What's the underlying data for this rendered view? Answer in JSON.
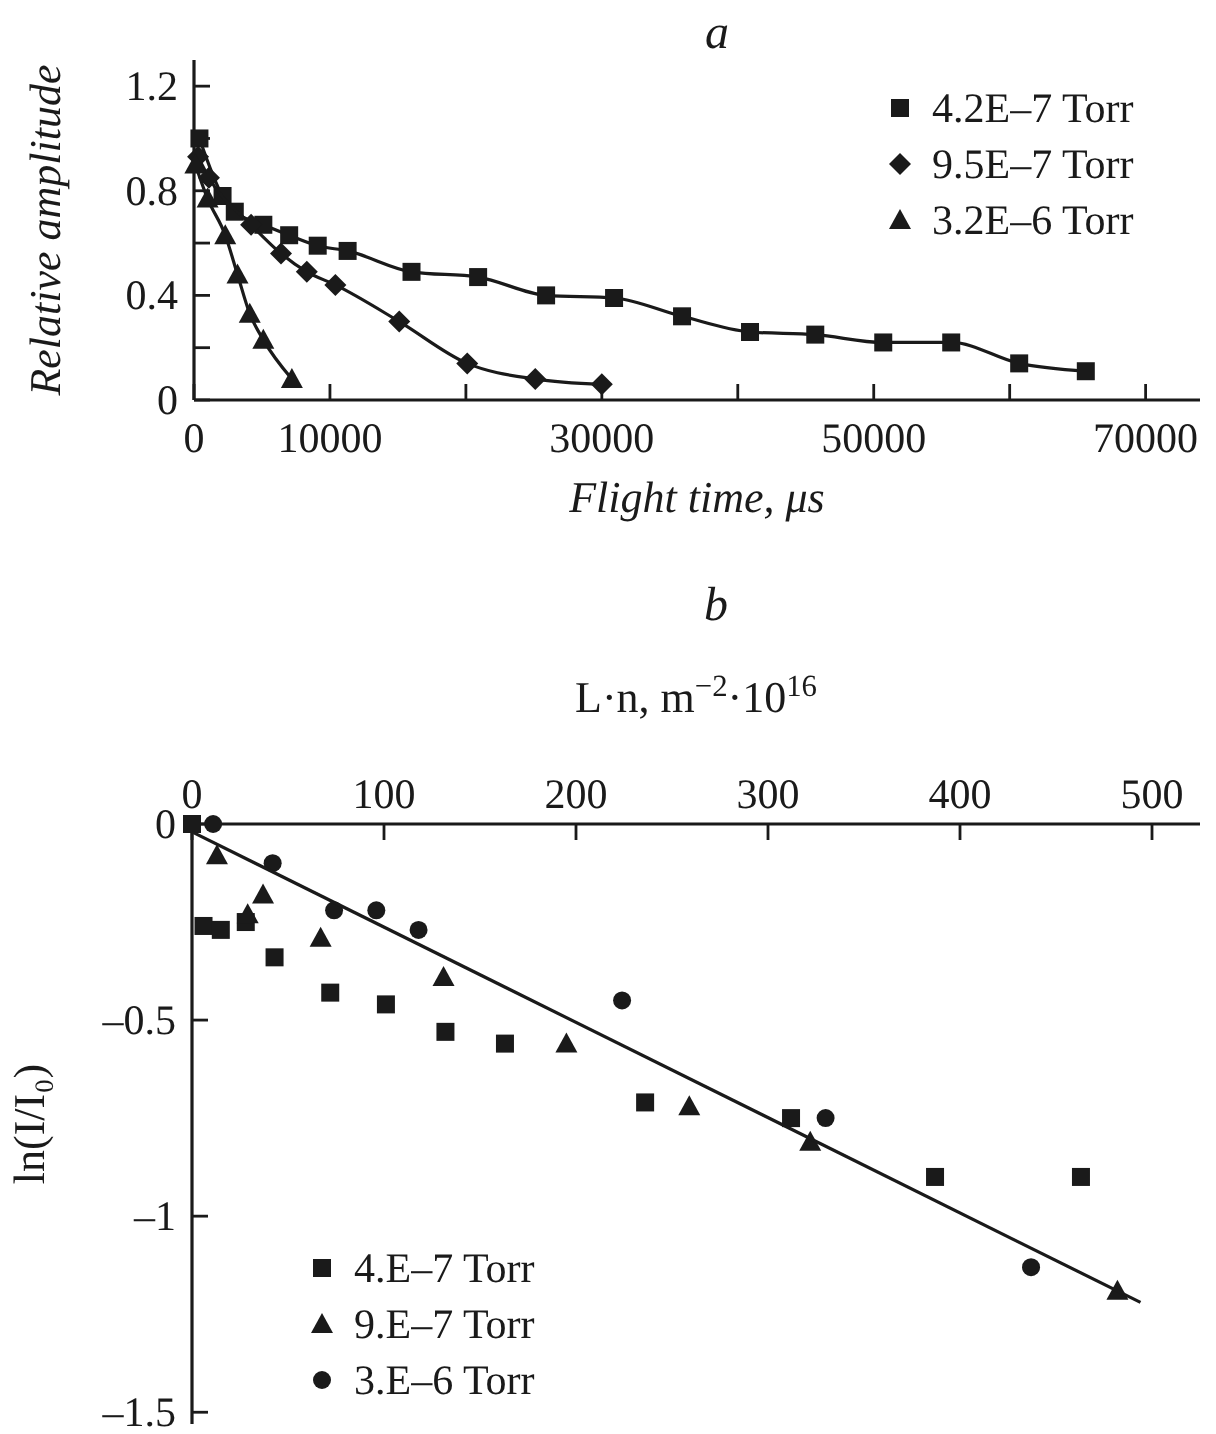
{
  "chart_data": [
    {
      "type": "line",
      "title": "a",
      "xlabel": "Flight time, μs",
      "ylabel": "Relative amplitude",
      "xlim": [
        0,
        74000
      ],
      "ylim": [
        0,
        1.3
      ],
      "xticks": [
        0,
        10000,
        {
          "value": 20000,
          "label": null
        },
        30000,
        {
          "value": 40000,
          "label": null
        },
        50000,
        {
          "value": 60000,
          "label": null
        },
        70000
      ],
      "yticks": [
        0,
        {
          "value": 0.2,
          "label": null
        },
        0.4,
        {
          "value": 0.6,
          "label": null
        },
        0.8,
        {
          "value": 1.0,
          "label": null
        },
        1.2
      ],
      "legend": "top right",
      "grid": false,
      "series": [
        {
          "name": "4.2E–7 Torr",
          "color": "#1a1a1a",
          "marker": "square",
          "x": [
            400,
            2100,
            3000,
            5100,
            7000,
            9100,
            11300,
            16000,
            20900,
            25900,
            30900,
            35900,
            40900,
            45700,
            50700,
            55700,
            60700,
            65600
          ],
          "values": [
            1.0,
            0.78,
            0.72,
            0.67,
            0.63,
            0.59,
            0.57,
            0.49,
            0.47,
            0.4,
            0.39,
            0.32,
            0.26,
            0.25,
            0.22,
            0.22,
            0.14,
            0.11
          ]
        },
        {
          "name": "9.5E–7 Torr",
          "color": "#1a1a1a",
          "marker": "diamond",
          "x": [
            300,
            1100,
            4200,
            6400,
            8300,
            10400,
            15100,
            20100,
            25100,
            30000
          ],
          "values": [
            0.93,
            0.85,
            0.67,
            0.56,
            0.49,
            0.44,
            0.3,
            0.14,
            0.08,
            0.06
          ]
        },
        {
          "name": "3.2E–6 Torr",
          "color": "#1a1a1a",
          "marker": "triangle",
          "x": [
            100,
            1000,
            2300,
            3200,
            4100,
            5100,
            7200
          ],
          "values": [
            0.9,
            0.77,
            0.63,
            0.48,
            0.33,
            0.23,
            0.08
          ]
        }
      ]
    },
    {
      "type": "scatter",
      "title": "b",
      "xlabel": "L·n, m$^{−2}$·10$^{16}$",
      "ylabel": "ln(I/I₀)",
      "xlim": [
        0,
        525
      ],
      "ylim": [
        -1.53,
        0
      ],
      "xticks": [
        0,
        100,
        200,
        300,
        400,
        500
      ],
      "yticks": [
        0,
        {
          "value": -0.5,
          "label": "–0.5"
        },
        {
          "value": -1,
          "label": "–1"
        },
        {
          "value": -1.5,
          "label": "–1.5"
        }
      ],
      "legend": "bottom left",
      "grid": false,
      "series": [
        {
          "name": "4.E–7 Torr",
          "color": "#1a1a1a",
          "marker": "square",
          "x": [
            0,
            6,
            15,
            28,
            43,
            72,
            101,
            132,
            163,
            236,
            312,
            387,
            463
          ],
          "values": [
            0,
            -0.26,
            -0.27,
            -0.25,
            -0.34,
            -0.43,
            -0.46,
            -0.53,
            -0.56,
            -0.71,
            -0.75,
            -0.9,
            -0.9
          ]
        },
        {
          "name": "9.E–7 Torr",
          "color": "#1a1a1a",
          "marker": "triangle",
          "x": [
            13,
            29,
            37,
            67,
            131,
            195,
            259,
            322,
            482
          ],
          "values": [
            -0.08,
            -0.23,
            -0.18,
            -0.29,
            -0.39,
            -0.56,
            -0.72,
            -0.81,
            -1.19
          ]
        },
        {
          "name": "3.E–6 Torr",
          "color": "#1a1a1a",
          "marker": "circle",
          "x": [
            11,
            42,
            74,
            96,
            118,
            224,
            330,
            437
          ],
          "values": [
            0,
            -0.1,
            -0.22,
            -0.22,
            -0.27,
            -0.45,
            -0.75,
            -1.13
          ]
        },
        {
          "type": "line",
          "color": "#1a1a1a",
          "marker": "none",
          "x": [
            0,
            494
          ],
          "values": [
            -0.02,
            -1.22
          ]
        }
      ]
    }
  ]
}
